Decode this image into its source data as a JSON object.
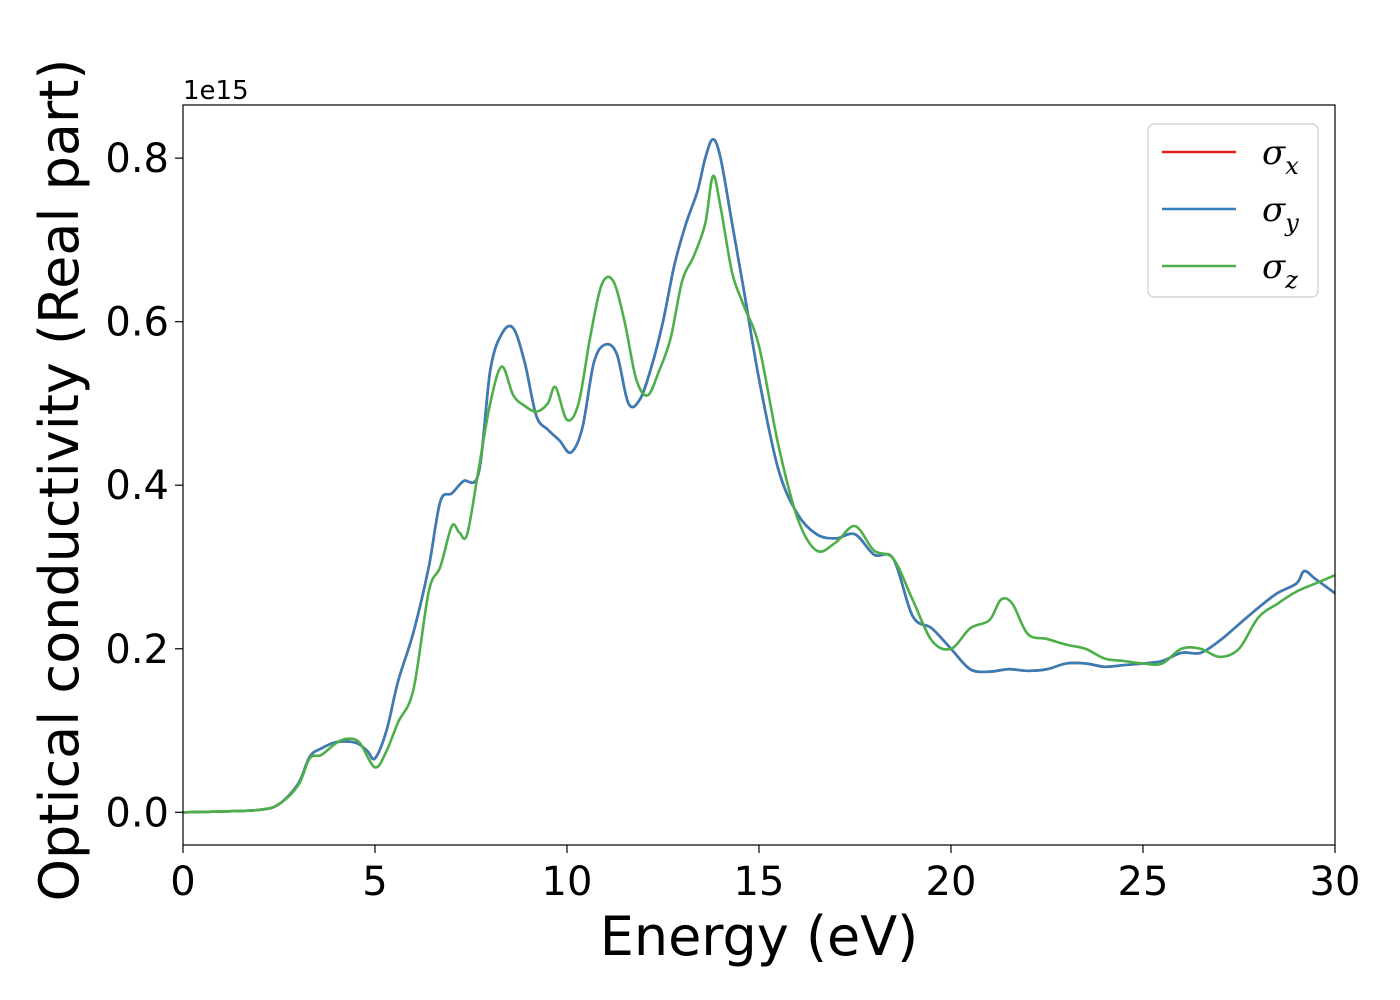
{
  "chart_data": {
    "type": "line",
    "xlabel": "Energy (eV)",
    "ylabel": "Optical conductivity (Real part)",
    "y_offset_label": "1e15",
    "xlim": [
      0,
      30
    ],
    "ylim": [
      -0.04,
      0.865
    ],
    "xticks": [
      0,
      5,
      10,
      15,
      20,
      25,
      30
    ],
    "xtick_labels": [
      "0",
      "5",
      "10",
      "15",
      "20",
      "25",
      "30"
    ],
    "yticks": [
      0.0,
      0.2,
      0.4,
      0.6,
      0.8
    ],
    "ytick_labels": [
      "0.0",
      "0.2",
      "0.4",
      "0.6",
      "0.8"
    ],
    "grid": false,
    "legend_position": "top-right",
    "series": [
      {
        "name": "σx",
        "symbol": "σ",
        "subscript": "x",
        "color": "#e41a1c",
        "x": [
          0,
          1,
          2,
          2.5,
          3,
          3.3,
          3.6,
          4,
          4.5,
          4.8,
          5,
          5.3,
          5.6,
          6,
          6.4,
          6.7,
          7,
          7.3,
          7.7,
          8,
          8.3,
          8.6,
          8.9,
          9.2,
          9.5,
          9.8,
          10.1,
          10.4,
          10.7,
          11,
          11.3,
          11.6,
          11.9,
          12.2,
          12.5,
          12.8,
          13.1,
          13.4,
          13.6,
          13.8,
          14,
          14.3,
          14.6,
          15,
          15.5,
          16,
          16.5,
          17,
          17.5,
          18,
          18.5,
          19,
          19.5,
          20,
          20.5,
          21,
          21.5,
          22,
          22.5,
          23,
          23.5,
          24,
          24.5,
          25,
          25.5,
          26,
          26.5,
          27,
          27.5,
          28,
          28.5,
          29,
          29.2,
          29.5,
          30
        ],
        "values": [
          0,
          0.001,
          0.003,
          0.01,
          0.035,
          0.068,
          0.078,
          0.086,
          0.085,
          0.075,
          0.066,
          0.1,
          0.16,
          0.22,
          0.3,
          0.38,
          0.39,
          0.405,
          0.415,
          0.54,
          0.585,
          0.592,
          0.55,
          0.485,
          0.468,
          0.455,
          0.44,
          0.47,
          0.55,
          0.572,
          0.56,
          0.5,
          0.505,
          0.545,
          0.6,
          0.67,
          0.72,
          0.76,
          0.8,
          0.823,
          0.8,
          0.72,
          0.64,
          0.53,
          0.42,
          0.365,
          0.34,
          0.335,
          0.34,
          0.315,
          0.31,
          0.24,
          0.225,
          0.2,
          0.175,
          0.172,
          0.175,
          0.173,
          0.175,
          0.182,
          0.182,
          0.178,
          0.18,
          0.182,
          0.185,
          0.195,
          0.195,
          0.21,
          0.23,
          0.25,
          0.268,
          0.28,
          0.295,
          0.285,
          0.268
        ]
      },
      {
        "name": "σy",
        "symbol": "σ",
        "subscript": "y",
        "color": "#377eb8",
        "x": [
          0,
          1,
          2,
          2.5,
          3,
          3.3,
          3.6,
          4,
          4.5,
          4.8,
          5,
          5.3,
          5.6,
          6,
          6.4,
          6.7,
          7,
          7.3,
          7.7,
          8,
          8.3,
          8.6,
          8.9,
          9.2,
          9.5,
          9.8,
          10.1,
          10.4,
          10.7,
          11,
          11.3,
          11.6,
          11.9,
          12.2,
          12.5,
          12.8,
          13.1,
          13.4,
          13.6,
          13.8,
          14,
          14.3,
          14.6,
          15,
          15.5,
          16,
          16.5,
          17,
          17.5,
          18,
          18.5,
          19,
          19.5,
          20,
          20.5,
          21,
          21.5,
          22,
          22.5,
          23,
          23.5,
          24,
          24.5,
          25,
          25.5,
          26,
          26.5,
          27,
          27.5,
          28,
          28.5,
          29,
          29.2,
          29.5,
          30
        ],
        "values": [
          0,
          0.001,
          0.003,
          0.01,
          0.035,
          0.068,
          0.078,
          0.086,
          0.085,
          0.075,
          0.066,
          0.1,
          0.16,
          0.22,
          0.3,
          0.38,
          0.39,
          0.405,
          0.415,
          0.54,
          0.585,
          0.592,
          0.55,
          0.485,
          0.468,
          0.455,
          0.44,
          0.47,
          0.55,
          0.572,
          0.56,
          0.5,
          0.505,
          0.545,
          0.6,
          0.67,
          0.72,
          0.76,
          0.8,
          0.823,
          0.8,
          0.72,
          0.64,
          0.53,
          0.42,
          0.365,
          0.34,
          0.335,
          0.34,
          0.315,
          0.31,
          0.24,
          0.225,
          0.2,
          0.175,
          0.172,
          0.175,
          0.173,
          0.175,
          0.182,
          0.182,
          0.178,
          0.18,
          0.182,
          0.185,
          0.195,
          0.195,
          0.21,
          0.23,
          0.25,
          0.268,
          0.28,
          0.295,
          0.285,
          0.268
        ]
      },
      {
        "name": "σz",
        "symbol": "σ",
        "subscript": "z",
        "color": "#4daf4a",
        "x": [
          0,
          1,
          2,
          2.5,
          3,
          3.3,
          3.6,
          4,
          4.3,
          4.6,
          5,
          5.3,
          5.6,
          6,
          6.4,
          6.7,
          7,
          7.2,
          7.4,
          7.7,
          8,
          8.3,
          8.6,
          8.9,
          9.2,
          9.5,
          9.7,
          10,
          10.3,
          10.6,
          10.9,
          11.2,
          11.5,
          11.8,
          12.1,
          12.4,
          12.7,
          13,
          13.3,
          13.6,
          13.8,
          14,
          14.3,
          14.6,
          15,
          15.5,
          16,
          16.5,
          17,
          17.5,
          18,
          18.5,
          19,
          19.5,
          20,
          20.5,
          21,
          21.3,
          21.6,
          22,
          22.5,
          23,
          23.5,
          24,
          24.5,
          25,
          25.5,
          26,
          26.5,
          27,
          27.5,
          28,
          28.5,
          29,
          29.5,
          30
        ],
        "values": [
          0,
          0.001,
          0.003,
          0.01,
          0.033,
          0.066,
          0.07,
          0.085,
          0.09,
          0.085,
          0.055,
          0.075,
          0.11,
          0.15,
          0.27,
          0.3,
          0.35,
          0.342,
          0.34,
          0.42,
          0.5,
          0.545,
          0.51,
          0.497,
          0.49,
          0.5,
          0.52,
          0.48,
          0.5,
          0.58,
          0.645,
          0.65,
          0.6,
          0.53,
          0.51,
          0.54,
          0.58,
          0.65,
          0.68,
          0.72,
          0.778,
          0.74,
          0.66,
          0.62,
          0.57,
          0.45,
          0.36,
          0.32,
          0.33,
          0.35,
          0.32,
          0.31,
          0.26,
          0.21,
          0.2,
          0.225,
          0.235,
          0.26,
          0.255,
          0.218,
          0.212,
          0.205,
          0.2,
          0.188,
          0.185,
          0.182,
          0.182,
          0.2,
          0.2,
          0.19,
          0.2,
          0.238,
          0.255,
          0.27,
          0.28,
          0.29
        ]
      }
    ]
  }
}
